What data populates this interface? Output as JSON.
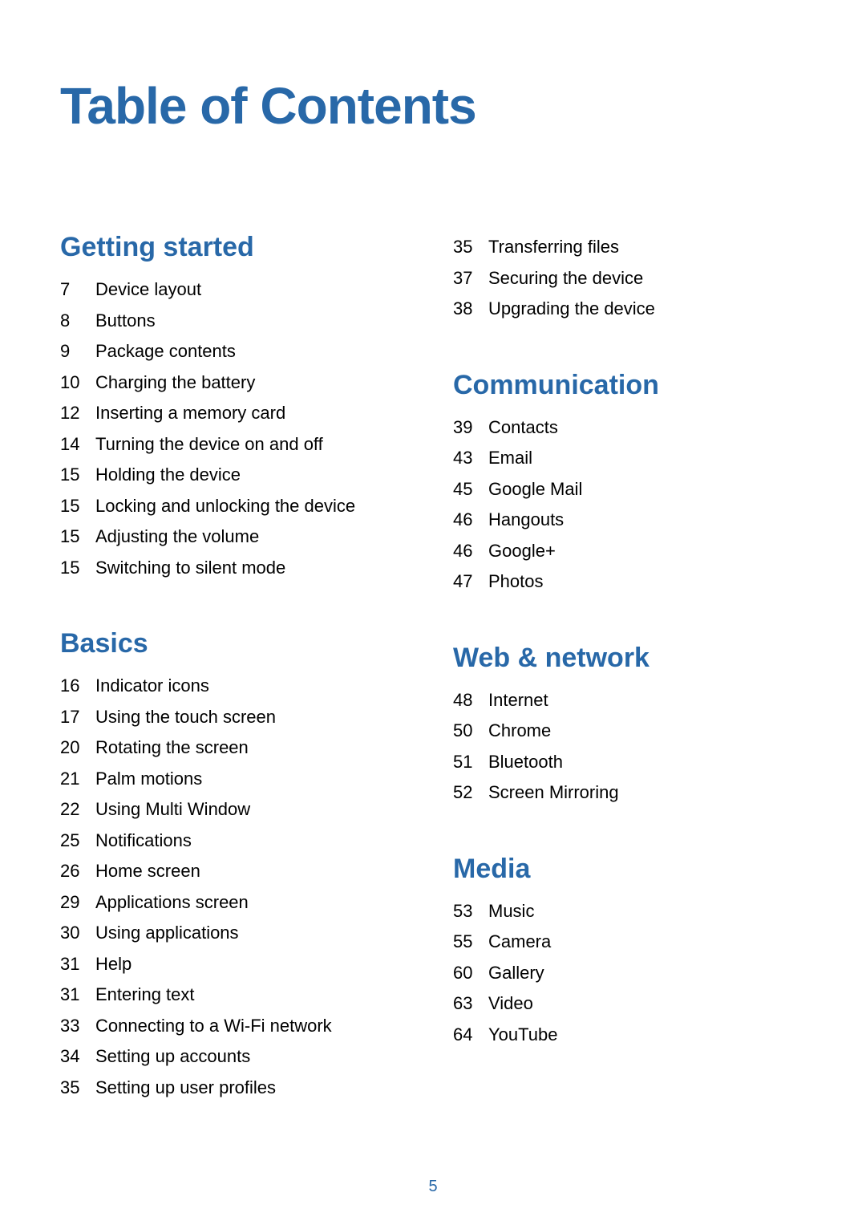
{
  "page_title": "Table of Contents",
  "page_number": "5",
  "colors": {
    "heading": "#2868a8",
    "text": "#000000",
    "background": "#ffffff"
  },
  "left_column": [
    {
      "heading": "Getting started",
      "items": [
        {
          "page": "7",
          "label": "Device layout"
        },
        {
          "page": "8",
          "label": "Buttons"
        },
        {
          "page": "9",
          "label": "Package contents"
        },
        {
          "page": "10",
          "label": "Charging the battery"
        },
        {
          "page": "12",
          "label": "Inserting a memory card"
        },
        {
          "page": "14",
          "label": "Turning the device on and off"
        },
        {
          "page": "15",
          "label": "Holding the device"
        },
        {
          "page": "15",
          "label": "Locking and unlocking the device"
        },
        {
          "page": "15",
          "label": "Adjusting the volume"
        },
        {
          "page": "15",
          "label": "Switching to silent mode"
        }
      ]
    },
    {
      "heading": "Basics",
      "items": [
        {
          "page": "16",
          "label": "Indicator icons"
        },
        {
          "page": "17",
          "label": "Using the touch screen"
        },
        {
          "page": "20",
          "label": "Rotating the screen"
        },
        {
          "page": "21",
          "label": "Palm motions"
        },
        {
          "page": "22",
          "label": "Using Multi Window"
        },
        {
          "page": "25",
          "label": "Notifications"
        },
        {
          "page": "26",
          "label": "Home screen"
        },
        {
          "page": "29",
          "label": "Applications screen"
        },
        {
          "page": "30",
          "label": "Using applications"
        },
        {
          "page": "31",
          "label": "Help"
        },
        {
          "page": "31",
          "label": "Entering text"
        },
        {
          "page": "33",
          "label": "Connecting to a Wi-Fi network"
        },
        {
          "page": "34",
          "label": "Setting up accounts"
        },
        {
          "page": "35",
          "label": "Setting up user profiles"
        }
      ]
    }
  ],
  "right_continuation": [
    {
      "page": "35",
      "label": "Transferring files"
    },
    {
      "page": "37",
      "label": "Securing the device"
    },
    {
      "page": "38",
      "label": "Upgrading the device"
    }
  ],
  "right_column": [
    {
      "heading": "Communication",
      "items": [
        {
          "page": "39",
          "label": "Contacts"
        },
        {
          "page": "43",
          "label": "Email"
        },
        {
          "page": "45",
          "label": "Google Mail"
        },
        {
          "page": "46",
          "label": "Hangouts"
        },
        {
          "page": "46",
          "label": "Google+"
        },
        {
          "page": "47",
          "label": "Photos"
        }
      ]
    },
    {
      "heading": "Web & network",
      "items": [
        {
          "page": "48",
          "label": "Internet"
        },
        {
          "page": "50",
          "label": "Chrome"
        },
        {
          "page": "51",
          "label": "Bluetooth"
        },
        {
          "page": "52",
          "label": "Screen Mirroring"
        }
      ]
    },
    {
      "heading": "Media",
      "items": [
        {
          "page": "53",
          "label": "Music"
        },
        {
          "page": "55",
          "label": "Camera"
        },
        {
          "page": "60",
          "label": "Gallery"
        },
        {
          "page": "63",
          "label": "Video"
        },
        {
          "page": "64",
          "label": "YouTube"
        }
      ]
    }
  ]
}
